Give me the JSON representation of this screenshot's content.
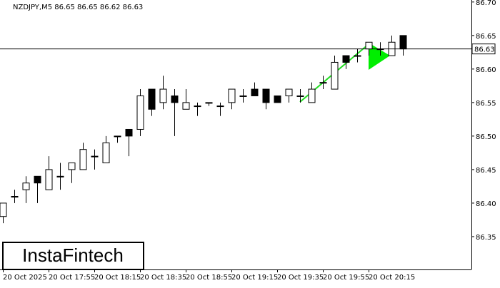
{
  "chart_data": {
    "type": "candlestick",
    "title": "NZDJPY,M5  86.65 86.65 86.62 86.63",
    "categories": [
      "20 Oct 2025",
      null,
      null,
      null,
      "20 Oct 17:55",
      null,
      null,
      null,
      "20 Oct 18:15",
      null,
      null,
      null,
      "20 Oct 18:35",
      null,
      null,
      null,
      "20 Oct 18:55",
      null,
      null,
      null,
      "20 Oct 19:15",
      null,
      null,
      null,
      "20 Oct 19:35",
      null,
      null,
      null,
      "20 Oct 19:55",
      null,
      null,
      null,
      "20 Oct 20:15",
      null,
      null,
      null
    ],
    "open": [
      86.38,
      86.41,
      86.42,
      86.44,
      86.42,
      86.44,
      86.45,
      86.45,
      86.47,
      86.46,
      86.5,
      86.51,
      86.51,
      86.57,
      86.55,
      86.56,
      86.54,
      86.545,
      86.55,
      86.545,
      86.55,
      86.56,
      86.57,
      86.57,
      86.56,
      86.56,
      86.56,
      86.55,
      86.58,
      86.57,
      86.62,
      86.62,
      86.63,
      86.63,
      86.62,
      86.65
    ],
    "high": [
      86.4,
      86.42,
      86.44,
      86.44,
      86.47,
      86.46,
      86.46,
      86.49,
      86.48,
      86.5,
      86.5,
      86.51,
      86.57,
      86.57,
      86.59,
      86.57,
      86.57,
      86.55,
      86.55,
      86.55,
      86.57,
      86.57,
      86.58,
      86.57,
      86.56,
      86.57,
      86.57,
      86.58,
      86.59,
      86.62,
      86.62,
      86.63,
      86.64,
      86.64,
      86.65,
      86.65
    ],
    "low": [
      86.37,
      86.4,
      86.4,
      86.4,
      86.42,
      86.42,
      86.43,
      86.45,
      86.45,
      86.46,
      86.49,
      86.47,
      86.5,
      86.53,
      86.54,
      86.5,
      86.54,
      86.53,
      86.545,
      86.53,
      86.54,
      86.55,
      86.56,
      86.54,
      86.55,
      86.55,
      86.55,
      86.55,
      86.57,
      86.57,
      86.6,
      86.61,
      86.62,
      86.62,
      86.62,
      86.62
    ],
    "close": [
      86.4,
      86.41,
      86.43,
      86.43,
      86.45,
      86.44,
      86.46,
      86.48,
      86.47,
      86.49,
      86.5,
      86.5,
      86.56,
      86.54,
      86.57,
      86.55,
      86.55,
      86.545,
      86.55,
      86.545,
      86.57,
      86.56,
      86.56,
      86.55,
      86.55,
      86.57,
      86.56,
      86.57,
      86.58,
      86.61,
      86.61,
      86.62,
      86.64,
      86.63,
      86.64,
      86.63
    ],
    "up_color": "#ffffff",
    "down_color": "#000000",
    "current_price": 86.63,
    "ylim": [
      86.301,
      86.703
    ],
    "yticks": [
      {
        "value": 86.7,
        "label": "86.70"
      },
      86.65,
      {
        "value": 86.6,
        "label": "86.60"
      },
      86.55,
      {
        "value": 86.5,
        "label": "86.50"
      },
      86.45,
      {
        "value": 86.4,
        "label": "86.40"
      },
      86.35
    ],
    "watermark": "InstaFintech"
  }
}
